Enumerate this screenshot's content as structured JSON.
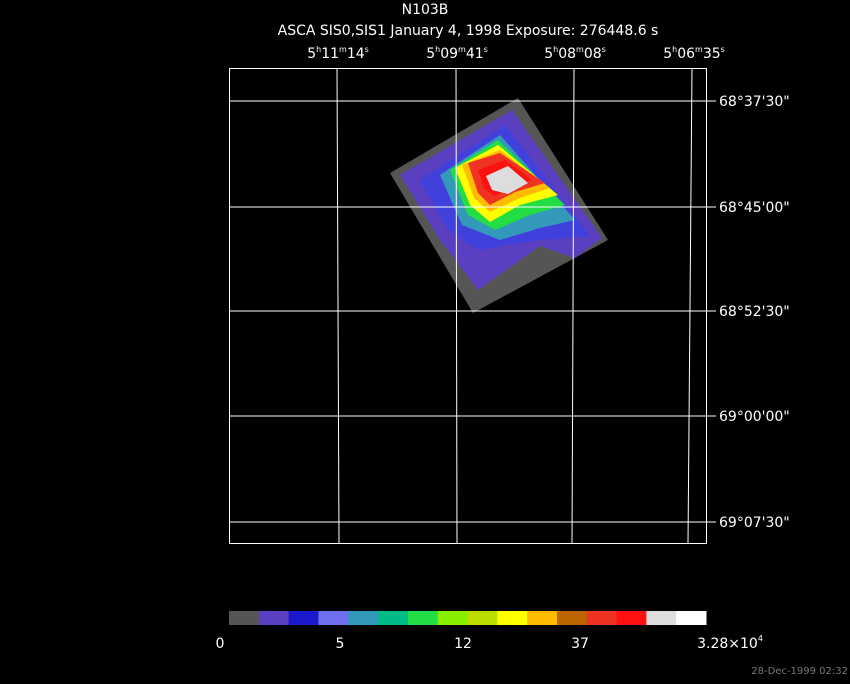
{
  "header": {
    "title": "N103B",
    "subtitle": "ASCA SIS0,SIS1 January 4, 1998 Exposure: 276448.6 s"
  },
  "ra_labels": [
    [
      "5",
      "h",
      "11",
      "m",
      "14",
      "s"
    ],
    [
      "5",
      "h",
      "09",
      "m",
      "41",
      "s"
    ],
    [
      "5",
      "h",
      "08",
      "m",
      "08",
      "s"
    ],
    [
      "5",
      "h",
      "06",
      "m",
      "35",
      "s"
    ]
  ],
  "dec_labels": [
    "68°37'30\"",
    "68°45'00\"",
    "68°52'30\"",
    "69°00'00\"",
    "69°07'30\""
  ],
  "colorbar": {
    "colors": [
      "#555555",
      "#5a3fc0",
      "#1a1acc",
      "#7070ee",
      "#3399bb",
      "#00bb88",
      "#22dd44",
      "#88ee00",
      "#bbdd00",
      "#ffff00",
      "#ffbb00",
      "#bb6600",
      "#ee3322",
      "#ff1111",
      "#dddddd",
      "#ffffff"
    ],
    "labels": [
      "0",
      "5",
      "12",
      "37"
    ],
    "max_label": {
      "base": "3.28×10",
      "exp": "4"
    }
  },
  "timestamp": "28-Dec-1999 02:32"
}
